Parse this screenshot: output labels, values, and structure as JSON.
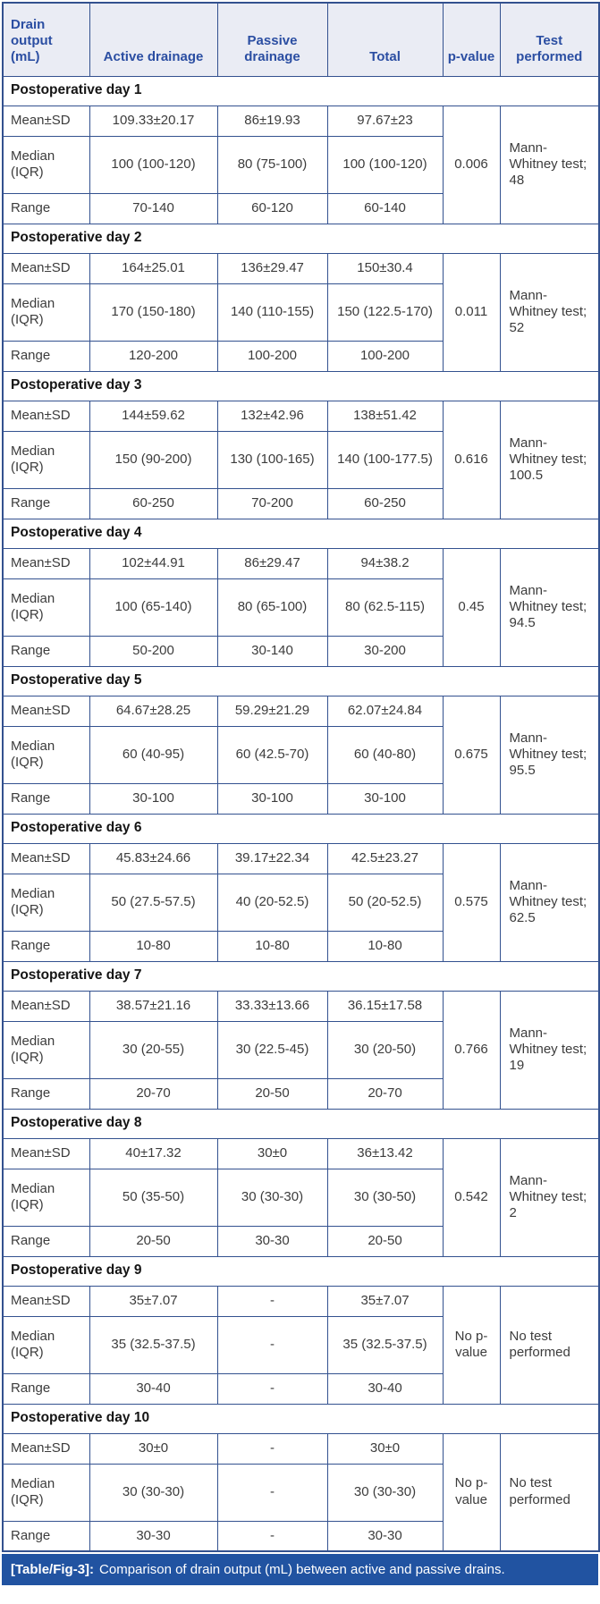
{
  "table": {
    "columns": [
      "Drain output (mL)",
      "Active drainage",
      "Passive drainage",
      "Total",
      "p-value",
      "Test performed"
    ],
    "row_labels": {
      "mean": "Mean±SD",
      "median": "Median (IQR)",
      "range": "Range"
    },
    "sections": [
      {
        "day": "Postoperative day 1",
        "mean": [
          "109.33±20.17",
          "86±19.93",
          "97.67±23"
        ],
        "median": [
          "100 (100-120)",
          "80 (75-100)",
          "100 (100-120)"
        ],
        "range": [
          "70-140",
          "60-120",
          "60-140"
        ],
        "p_value": "0.006",
        "test": "Mann-Whitney test; 48"
      },
      {
        "day": "Postoperative day 2",
        "mean": [
          "164±25.01",
          "136±29.47",
          "150±30.4"
        ],
        "median": [
          "170 (150-180)",
          "140 (110-155)",
          "150 (122.5-170)"
        ],
        "range": [
          "120-200",
          "100-200",
          "100-200"
        ],
        "p_value": "0.011",
        "test": "Mann-Whitney test; 52"
      },
      {
        "day": "Postoperative day 3",
        "mean": [
          "144±59.62",
          "132±42.96",
          "138±51.42"
        ],
        "median": [
          "150 (90-200)",
          "130 (100-165)",
          "140 (100-177.5)"
        ],
        "range": [
          "60-250",
          "70-200",
          "60-250"
        ],
        "p_value": "0.616",
        "test": "Mann-Whitney test; 100.5"
      },
      {
        "day": "Postoperative day 4",
        "mean": [
          "102±44.91",
          "86±29.47",
          "94±38.2"
        ],
        "median": [
          "100 (65-140)",
          "80 (65-100)",
          "80 (62.5-115)"
        ],
        "range": [
          "50-200",
          "30-140",
          "30-200"
        ],
        "p_value": "0.45",
        "test": "Mann-Whitney test; 94.5"
      },
      {
        "day": "Postoperative day 5",
        "mean": [
          "64.67±28.25",
          "59.29±21.29",
          "62.07±24.84"
        ],
        "median": [
          "60 (40-95)",
          "60 (42.5-70)",
          "60 (40-80)"
        ],
        "range": [
          "30-100",
          "30-100",
          "30-100"
        ],
        "p_value": "0.675",
        "test": "Mann-Whitney test; 95.5"
      },
      {
        "day": "Postoperative day 6",
        "mean": [
          "45.83±24.66",
          "39.17±22.34",
          "42.5±23.27"
        ],
        "median": [
          "50 (27.5-57.5)",
          "40 (20-52.5)",
          "50 (20-52.5)"
        ],
        "range": [
          "10-80",
          "10-80",
          "10-80"
        ],
        "p_value": "0.575",
        "test": "Mann-Whitney test; 62.5"
      },
      {
        "day": "Postoperative day 7",
        "mean": [
          "38.57±21.16",
          "33.33±13.66",
          "36.15±17.58"
        ],
        "median": [
          "30 (20-55)",
          "30 (22.5-45)",
          "30 (20-50)"
        ],
        "range": [
          "20-70",
          "20-50",
          "20-70"
        ],
        "p_value": "0.766",
        "test": "Mann-Whitney test; 19"
      },
      {
        "day": "Postoperative day 8",
        "mean": [
          "40±17.32",
          "30±0",
          "36±13.42"
        ],
        "median": [
          "50 (35-50)",
          "30 (30-30)",
          "30 (30-50)"
        ],
        "range": [
          "20-50",
          "30-30",
          "20-50"
        ],
        "p_value": "0.542",
        "test": "Mann-Whitney test; 2"
      },
      {
        "day": "Postoperative day 9",
        "mean": [
          "35±7.07",
          "-",
          "35±7.07"
        ],
        "median": [
          "35 (32.5-37.5)",
          "-",
          "35 (32.5-37.5)"
        ],
        "range": [
          "30-40",
          "-",
          "30-40"
        ],
        "p_value": "No p-value",
        "test": "No test performed"
      },
      {
        "day": "Postoperative day 10",
        "mean": [
          "30±0",
          "-",
          "30±0"
        ],
        "median": [
          "30 (30-30)",
          "-",
          "30 (30-30)"
        ],
        "range": [
          "30-30",
          "-",
          "30-30"
        ],
        "p_value": "No p-value",
        "test": "No test performed"
      }
    ]
  },
  "caption": {
    "label": "[Table/Fig-3]:",
    "text": "Comparison of drain output (mL) between active and passive drains."
  },
  "colors": {
    "header_bg": "#eaecf4",
    "header_text": "#2b4ea2",
    "border": "#33518f",
    "body_text": "#3c3c3c",
    "day_text": "#151515",
    "caption_bg": "#2153a1",
    "caption_text": "#ffffff"
  }
}
